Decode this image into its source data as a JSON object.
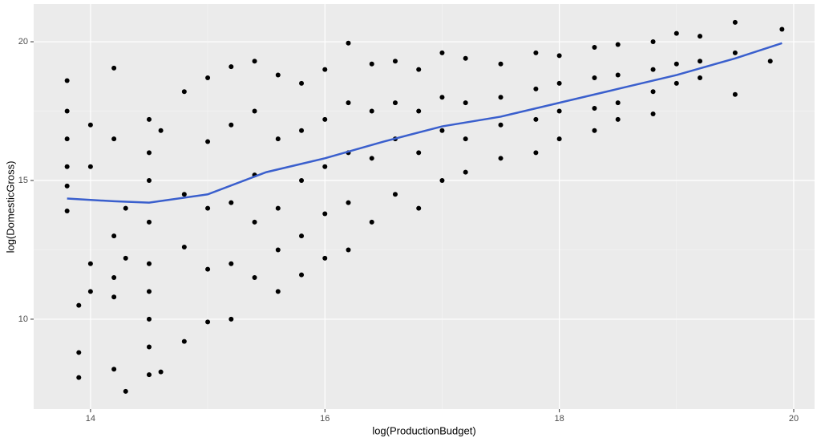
{
  "chart_data": {
    "type": "scatter",
    "x_label": "log(ProductionBudget)",
    "y_label": "log(DomesticGross)",
    "xlim": [
      13.515,
      20.178
    ],
    "ylim": [
      6.76,
      21.36
    ],
    "xticks": [
      14,
      16,
      18,
      20
    ],
    "yticks": [
      10,
      15,
      20
    ],
    "grid": true,
    "points": {
      "color": "#000000",
      "x": [
        13.8,
        13.8,
        13.8,
        13.8,
        13.8,
        13.8,
        14.0,
        14.0,
        14.0,
        14.0,
        13.9,
        13.9,
        13.9,
        14.2,
        14.2,
        14.2,
        14.2,
        14.2,
        14.2,
        14.3,
        14.3,
        14.3,
        14.5,
        14.5,
        14.5,
        14.5,
        14.5,
        14.5,
        14.5,
        14.5,
        14.5,
        14.6,
        14.6,
        14.8,
        14.8,
        14.8,
        14.8,
        15.0,
        15.0,
        15.0,
        15.0,
        15.0,
        15.2,
        15.2,
        15.2,
        15.2,
        15.2,
        15.4,
        15.4,
        15.4,
        15.4,
        15.4,
        15.6,
        15.6,
        15.6,
        15.6,
        15.6,
        15.8,
        15.8,
        15.8,
        15.8,
        15.8,
        16.0,
        16.0,
        16.0,
        16.0,
        16.0,
        16.2,
        16.2,
        16.2,
        16.2,
        16.2,
        16.4,
        16.4,
        16.4,
        16.4,
        16.6,
        16.6,
        16.6,
        16.6,
        16.8,
        16.8,
        16.8,
        16.8,
        17.0,
        17.0,
        17.0,
        17.0,
        17.2,
        17.2,
        17.2,
        17.2,
        17.5,
        17.5,
        17.5,
        17.5,
        17.8,
        17.8,
        17.8,
        17.8,
        18.0,
        18.0,
        18.0,
        18.0,
        18.3,
        18.3,
        18.3,
        18.3,
        18.5,
        18.5,
        18.5,
        18.5,
        18.8,
        18.8,
        18.8,
        18.8,
        19.0,
        19.0,
        19.0,
        19.2,
        19.2,
        19.2,
        19.5,
        19.5,
        19.5,
        19.8,
        19.9
      ],
      "y": [
        18.6,
        17.5,
        16.5,
        15.5,
        14.8,
        13.9,
        12.0,
        11.0,
        15.5,
        17.0,
        7.9,
        8.8,
        10.5,
        19.05,
        16.5,
        13.0,
        11.5,
        8.2,
        10.8,
        7.4,
        14.0,
        12.2,
        17.2,
        16.0,
        15.0,
        13.5,
        12.0,
        11.0,
        10.0,
        9.0,
        8.0,
        8.1,
        16.8,
        18.2,
        14.5,
        12.6,
        9.2,
        18.7,
        16.4,
        14.0,
        11.8,
        9.9,
        19.1,
        17.0,
        14.2,
        12.0,
        10.0,
        19.3,
        17.5,
        15.2,
        13.5,
        11.5,
        18.8,
        16.5,
        14.0,
        12.5,
        11.0,
        18.5,
        16.8,
        15.0,
        13.0,
        11.6,
        19.0,
        17.2,
        15.5,
        13.8,
        12.2,
        19.95,
        17.8,
        16.0,
        14.2,
        12.5,
        19.2,
        17.5,
        15.8,
        13.5,
        19.3,
        17.8,
        16.5,
        14.5,
        19.0,
        17.5,
        16.0,
        14.0,
        19.6,
        18.0,
        16.8,
        15.0,
        19.4,
        17.8,
        16.5,
        15.3,
        19.2,
        18.0,
        17.0,
        15.8,
        19.6,
        18.3,
        17.2,
        16.0,
        19.5,
        18.5,
        17.5,
        16.5,
        19.8,
        18.7,
        17.6,
        16.8,
        19.9,
        18.8,
        17.8,
        17.2,
        20.0,
        19.0,
        18.2,
        17.4,
        20.3,
        19.2,
        18.5,
        20.2,
        19.3,
        18.7,
        20.7,
        19.6,
        18.1,
        19.3,
        20.45
      ]
    },
    "smooth": {
      "color": "#3a5fcd",
      "x": [
        13.8,
        14.2,
        14.5,
        15.0,
        15.5,
        16.0,
        16.5,
        17.0,
        17.5,
        18.0,
        18.5,
        19.0,
        19.5,
        19.9
      ],
      "y": [
        14.35,
        14.25,
        14.2,
        14.5,
        15.3,
        15.8,
        16.4,
        16.95,
        17.3,
        17.8,
        18.3,
        18.8,
        19.4,
        19.95
      ]
    }
  }
}
